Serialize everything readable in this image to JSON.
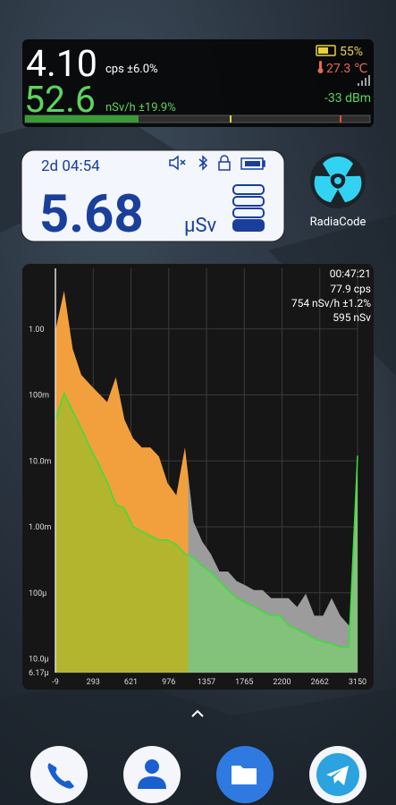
{
  "top_widget": {
    "count_rate": "4.10",
    "count_unit": "cps ±6.0%",
    "dose_rate": "52.6",
    "dose_unit": "nSv/h ±19.9%",
    "battery": "55%",
    "temperature": "27.3 ℃",
    "signal": "-33 dBm"
  },
  "dosimeter_widget": {
    "time": "2d 04:54",
    "dose": "5.68",
    "unit": "μSv"
  },
  "app": {
    "label": "RadiaCode"
  },
  "spectrum_widget": {
    "elapsed": "00:47:21",
    "count_rate": "77.9 cps",
    "dose_rate": "754 nSv/h ±1.2%",
    "dose": "595 nSv"
  },
  "chart_data": {
    "type": "area",
    "log_scale": true,
    "grid": true,
    "ylim": [
      6.17e-06,
      8.3
    ],
    "yticks": [
      {
        "value": 1,
        "label": "1.00"
      },
      {
        "value": 0.1,
        "label": "100m"
      },
      {
        "value": 0.01,
        "label": "10.0m"
      },
      {
        "value": 0.001,
        "label": "1.00m"
      },
      {
        "value": 0.0001,
        "label": "100µ"
      },
      {
        "value": 1e-05,
        "label": "10.0µ"
      },
      {
        "value": 6.17e-06,
        "label": "6.17µ"
      }
    ],
    "xticks": [
      -9,
      293,
      621,
      976,
      1357,
      1765,
      2200,
      2662,
      3150
    ],
    "series": [
      {
        "color": "#f2a03d",
        "color_outside_roi": "#9c9c9c",
        "values": [
          0.94,
          3.8,
          0.5,
          0.2,
          0.145,
          0.106,
          0.078,
          0.186,
          0.042,
          0.022,
          0.016,
          0.016,
          0.0116,
          0.0046,
          0.003,
          0.016,
          0.0012,
          0.0006,
          0.00039,
          0.00021,
          0.00021,
          0.00015,
          0.00013,
          0.00011,
          0.00011,
          8.3e-05,
          8.3e-05,
          8.3e-05,
          6.1e-05,
          9.7e-05,
          4.5e-05,
          4.5e-05,
          8.3e-05,
          4.5e-05,
          3.2e-05,
          0.00015
        ]
      },
      {
        "color": "#b3b52f",
        "color_outside_roi": "#82c27a",
        "line_color": "#38e038",
        "values": [
          0.042,
          0.106,
          0.057,
          0.031,
          0.016,
          0.0089,
          0.0048,
          0.0022,
          0.0019,
          0.001,
          0.00085,
          0.00073,
          0.00063,
          0.00063,
          0.00054,
          0.00039,
          0.00034,
          0.00025,
          0.00021,
          0.00015,
          0.00011,
          8.3e-05,
          7.1e-05,
          6.1e-05,
          5.2e-05,
          4.5e-05,
          4.5e-05,
          3.2e-05,
          2.8e-05,
          2.4e-05,
          2e-05,
          1.8e-05,
          1.7e-05,
          1.5e-05,
          1.5e-05,
          0.012
        ]
      }
    ]
  }
}
